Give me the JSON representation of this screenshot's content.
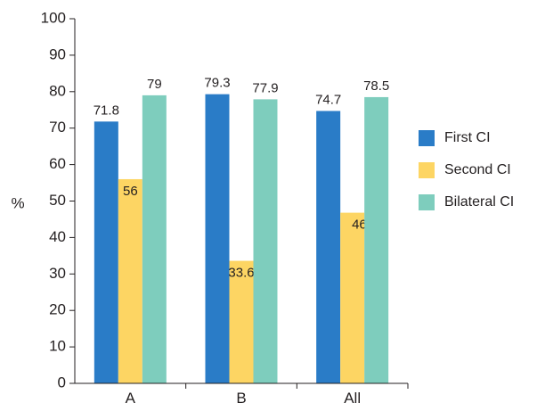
{
  "chart_data": {
    "type": "bar",
    "ylabel": "%",
    "ylim": [
      0,
      100
    ],
    "yticks": [
      0,
      10,
      20,
      30,
      40,
      50,
      60,
      70,
      80,
      90,
      100
    ],
    "categories": [
      "A",
      "B",
      "All"
    ],
    "series": [
      {
        "name": "First CI",
        "values": [
          71.8,
          79.3,
          74.7
        ],
        "color": "#2a7cc7"
      },
      {
        "name": "Second CI",
        "values": [
          56,
          33.6,
          46.8
        ],
        "color": "#fdd563"
      },
      {
        "name": "Bilateral CI",
        "values": [
          79,
          77.9,
          78.5
        ],
        "color": "#7ecdbd"
      }
    ],
    "data_labels": [
      [
        "71.8",
        "79.3",
        "74.7"
      ],
      [
        "56",
        "33.6",
        "46.8"
      ],
      [
        "79",
        "77.9",
        "78.5"
      ]
    ],
    "grid": false,
    "legend_position": "right"
  }
}
